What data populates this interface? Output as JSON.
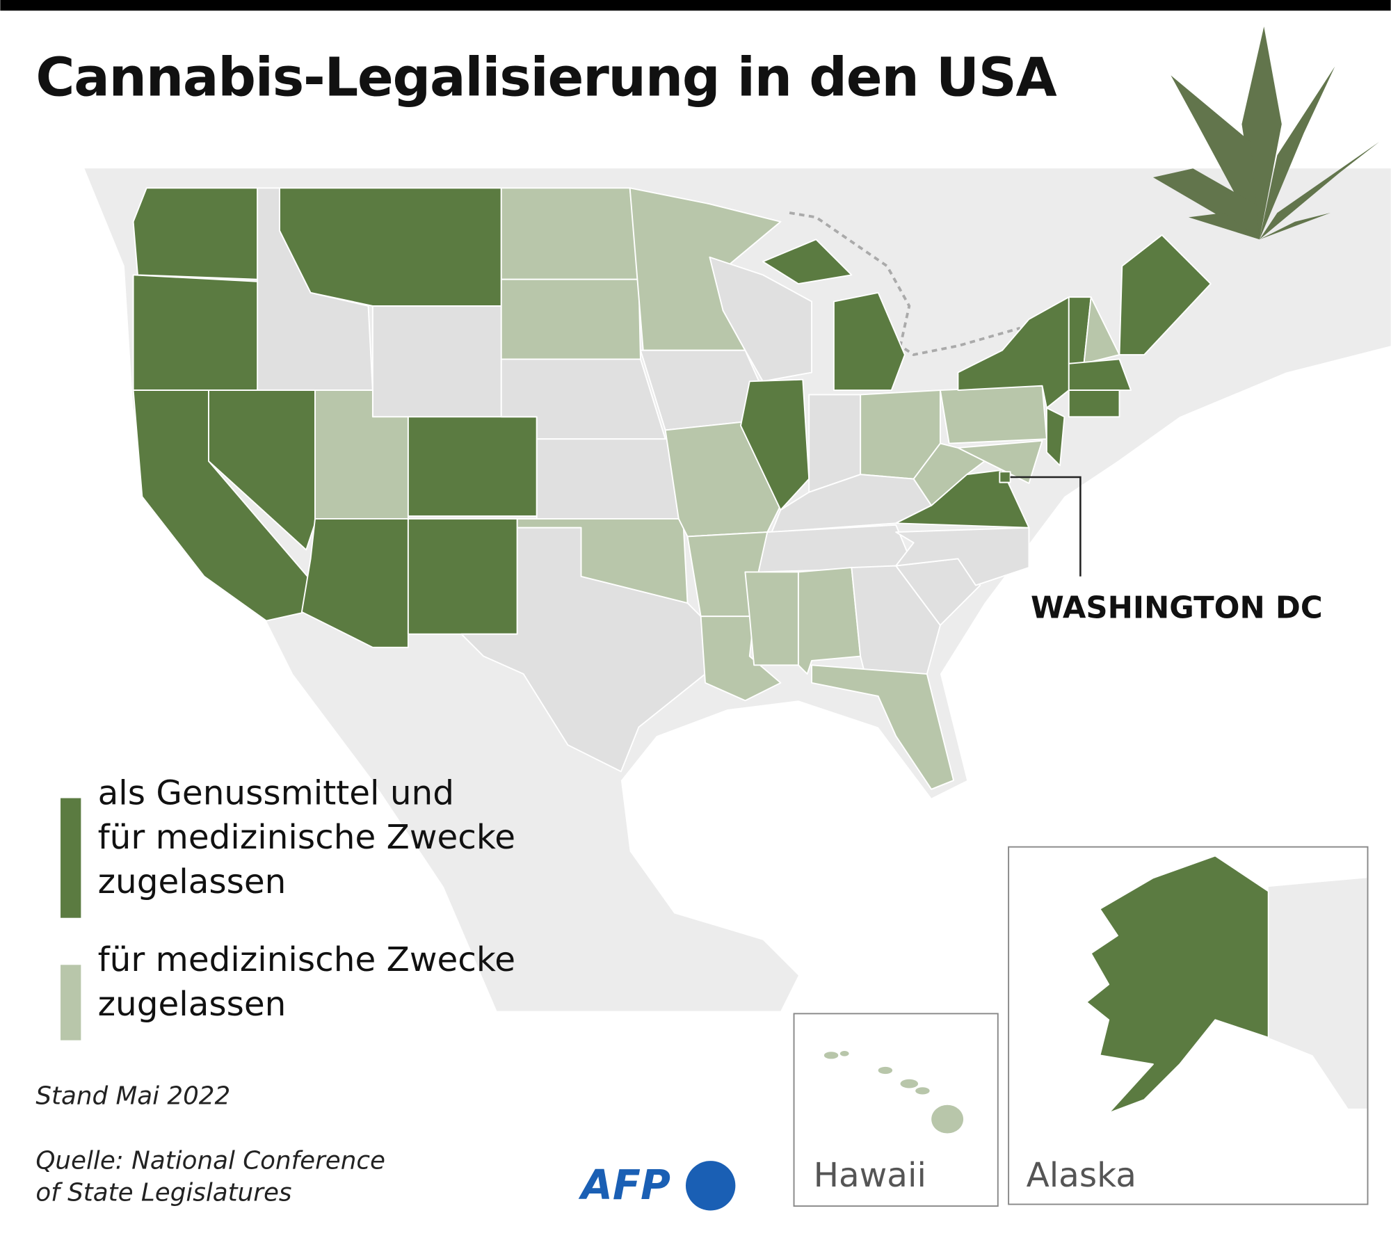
{
  "header": {
    "title": "Cannabis-Legalisierung in den USA"
  },
  "legend": [
    {
      "lines": [
        "als Genussmittel und",
        "für medizinische Zwecke",
        "zugelassen"
      ],
      "color": "#5b7b41"
    },
    {
      "lines": [
        "für medizinische Zwecke",
        "zugelassen"
      ],
      "color": "#b8c6aa"
    }
  ],
  "callout": "WASHINGTON DC",
  "insets": [
    "Hawaii",
    "Alaska"
  ],
  "footer": {
    "date": "Stand Mai 2022",
    "source": [
      "Quelle: National Conference",
      "of State Legislatures"
    ],
    "logo": "AFP"
  }
}
